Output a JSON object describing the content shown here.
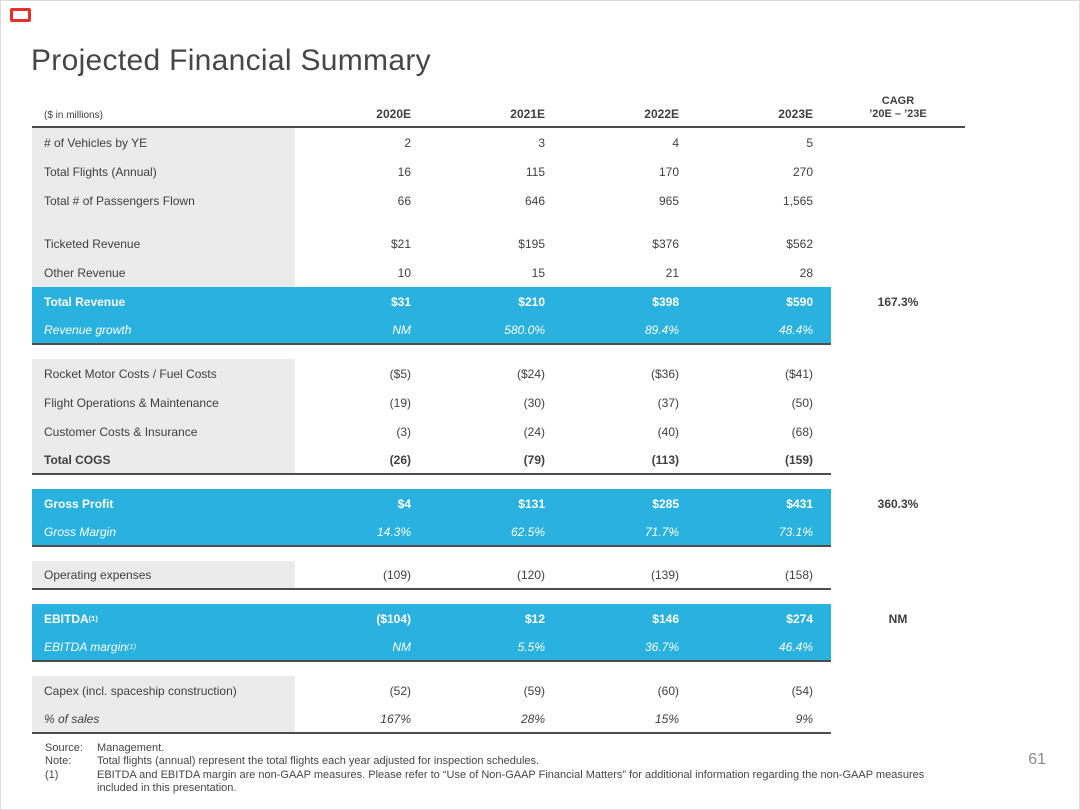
{
  "page": {
    "title": "Projected Financial Summary",
    "page_number": "61"
  },
  "colors": {
    "accent_blue": "#29b1e0",
    "label_gray": "#ebebeb",
    "line_dark": "#4d4d4d",
    "logo_red": "#e8302a"
  },
  "table": {
    "unit_label": "($ in millions)",
    "columns": [
      "2020E",
      "2021E",
      "2022E",
      "2023E"
    ],
    "cagr_header": {
      "line1": "CAGR",
      "line2": "’20E – ’23E"
    },
    "rows": [
      {
        "label": "# of Vehicles by YE",
        "values": [
          "2",
          "3",
          "4",
          "5"
        ]
      },
      {
        "label": "Total Flights (Annual)",
        "values": [
          "16",
          "115",
          "170",
          "270"
        ]
      },
      {
        "label": "Total # of Passengers Flown",
        "values": [
          "66",
          "646",
          "965",
          "1,565"
        ]
      },
      {
        "type": "spacer",
        "gray": true
      },
      {
        "label": "Ticketed Revenue",
        "values": [
          "$21",
          "$195",
          "$376",
          "$562"
        ]
      },
      {
        "label": "Other Revenue",
        "values": [
          "10",
          "15",
          "21",
          "28"
        ]
      },
      {
        "label": "Total Revenue",
        "values": [
          "$31",
          "$210",
          "$398",
          "$590"
        ],
        "cagr": "167.3%",
        "style": "highlight"
      },
      {
        "label": "Revenue growth",
        "values": [
          "NM",
          "580.0%",
          "89.4%",
          "48.4%"
        ],
        "style": "highlight-italic",
        "border_bottom": true
      },
      {
        "type": "spacer"
      },
      {
        "label": "Rocket Motor Costs / Fuel Costs",
        "values": [
          "($5)",
          "($24)",
          "($36)",
          "($41)"
        ]
      },
      {
        "label": "Flight Operations & Maintenance",
        "values": [
          "(19)",
          "(30)",
          "(37)",
          "(50)"
        ]
      },
      {
        "label": "Customer Costs & Insurance",
        "values": [
          "(3)",
          "(24)",
          "(40)",
          "(68)"
        ]
      },
      {
        "label": "Total COGS",
        "values": [
          "(26)",
          "(79)",
          "(113)",
          "(159)"
        ],
        "style": "bold",
        "border_bottom": true
      },
      {
        "type": "spacer"
      },
      {
        "label": "Gross Profit",
        "values": [
          "$4",
          "$131",
          "$285",
          "$431"
        ],
        "cagr": "360.3%",
        "style": "highlight"
      },
      {
        "label": "Gross Margin",
        "values": [
          "14.3%",
          "62.5%",
          "71.7%",
          "73.1%"
        ],
        "style": "highlight-italic",
        "border_bottom": true
      },
      {
        "type": "spacer"
      },
      {
        "label": "Operating expenses",
        "values": [
          "(109)",
          "(120)",
          "(139)",
          "(158)"
        ],
        "border_bottom": true
      },
      {
        "type": "spacer"
      },
      {
        "label": "EBITDA",
        "label_sup": "(1)",
        "values": [
          "($104)",
          "$12",
          "$146",
          "$274"
        ],
        "cagr": "NM",
        "style": "highlight"
      },
      {
        "label": "EBITDA margin",
        "label_sup": "(1)",
        "values": [
          "NM",
          "5.5%",
          "36.7%",
          "46.4%"
        ],
        "style": "highlight-italic",
        "border_bottom": true
      },
      {
        "type": "spacer"
      },
      {
        "label": "Capex (incl. spaceship construction)",
        "values": [
          "(52)",
          "(59)",
          "(60)",
          "(54)"
        ]
      },
      {
        "label": "% of sales",
        "values": [
          "167%",
          "28%",
          "15%",
          "9%"
        ],
        "style": "italic",
        "border_bottom": true
      }
    ]
  },
  "footnotes": {
    "source_label": "Source:",
    "source_text": "Management.",
    "note_label": "Note:",
    "note_text": "Total flights (annual) represent the total flights each year adjusted for inspection schedules.",
    "fn1_label": "(1)",
    "fn1_text": "EBITDA and EBITDA margin are non-GAAP measures. Please refer to “Use of Non-GAAP Financial Matters” for additional information regarding the non-GAAP measures included in this presentation."
  }
}
